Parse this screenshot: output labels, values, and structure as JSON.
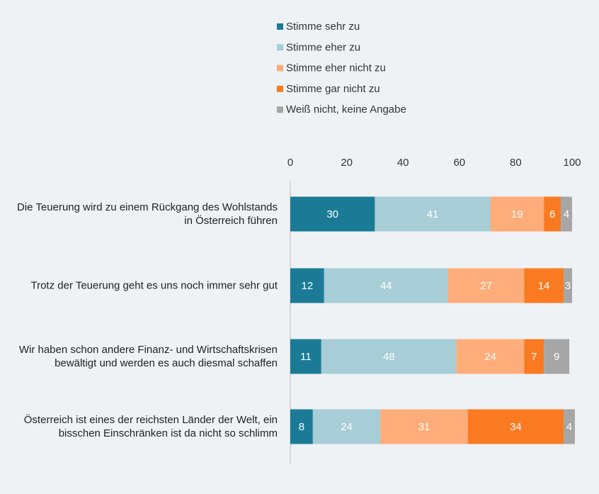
{
  "chart_data": {
    "type": "stacked-barh",
    "categories": [
      "Die Teuerung wird zu einem Rückgang des Wohlstands in Österreich führen",
      "Trotz der Teuerung geht es uns noch immer sehr gut",
      "Wir haben schon andere Finanz- und Wirtschaftskrisen bewältigt und werden es auch diesmal schaffen",
      "Österreich ist eines der reichsten Länder der Welt, ein bisschen Einschränken ist da nicht so schlimm"
    ],
    "series": [
      {
        "name": "Stimme sehr zu",
        "color": "#1b7b96",
        "values": [
          30,
          12,
          11,
          8
        ]
      },
      {
        "name": "Stimme eher zu",
        "color": "#a7cdd7",
        "values": [
          41,
          44,
          48,
          24
        ]
      },
      {
        "name": "Stimme eher nicht zu",
        "color": "#fdac7a",
        "values": [
          19,
          27,
          24,
          31
        ]
      },
      {
        "name": "Stimme gar nicht zu",
        "color": "#fa7a22",
        "values": [
          6,
          14,
          7,
          34
        ]
      },
      {
        "name": "Weiß nicht, keine Angabe",
        "color": "#a6a6a6",
        "values": [
          4,
          3,
          9,
          4
        ]
      }
    ],
    "xlim": [
      0,
      100
    ],
    "xticks": [
      0,
      20,
      40,
      60,
      80,
      100
    ],
    "legend": "top"
  }
}
